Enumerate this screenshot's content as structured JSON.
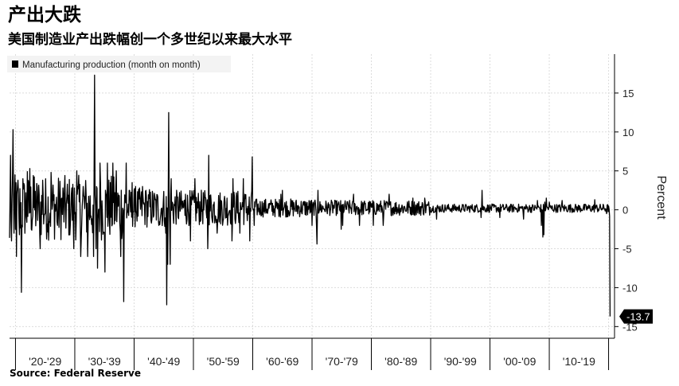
{
  "title": "产出大跌",
  "subtitle": "美国制造业产出跌幅创一个多世纪以来最大水平",
  "source": "Source:  Federal Reserve",
  "chart_data": {
    "type": "line",
    "title": "产出大跌",
    "subtitle": "美国制造业产出跌幅创一个多世纪以来最大水平",
    "ylabel": "Percent",
    "xlabel": "",
    "ylim": [
      -16.5,
      20
    ],
    "yticks": [
      -15,
      -10,
      -5,
      0,
      5,
      10,
      15
    ],
    "x_tick_labels": [
      "'20-'29",
      "'30-'39",
      "'40-'49",
      "'50-'59",
      "'60-'69",
      "'70-'79",
      "'80-'89",
      "'90-'99",
      "'00-'09",
      "'10-'19"
    ],
    "xlim": [
      "1919-01",
      "2020-12"
    ],
    "legend": "top-left",
    "grid": true,
    "series": [
      {
        "name": "Manufacturing production (month on month)",
        "color": "#000000",
        "x_start": "1919-01",
        "frequency": "monthly",
        "keypoints": [
          [
            "1919-01",
            -3.6
          ],
          [
            "1919-03",
            7.0
          ],
          [
            "1919-05",
            -4.0
          ],
          [
            "1919-08",
            10.3
          ],
          [
            "1919-10",
            -3.0
          ],
          [
            "1919-12",
            4.5
          ],
          [
            "1920-03",
            -6.0
          ],
          [
            "1920-06",
            3.8
          ],
          [
            "1920-09",
            -3.2
          ],
          [
            "1921-01",
            -10.6
          ],
          [
            "1921-04",
            4.0
          ],
          [
            "1922-01",
            4.9
          ],
          [
            "1922-06",
            5.3
          ],
          [
            "1923-01",
            4.4
          ],
          [
            "1924-03",
            -5.0
          ],
          [
            "1924-08",
            3.8
          ],
          [
            "1926-01",
            4.8
          ],
          [
            "1927-02",
            -2.0
          ],
          [
            "1929-06",
            2.0
          ],
          [
            "1929-11",
            -5.0
          ],
          [
            "1930-05",
            5.0
          ],
          [
            "1931-01",
            -6.0
          ],
          [
            "1931-06",
            3.0
          ],
          [
            "1932-03",
            -6.0
          ],
          [
            "1933-03",
            -6.0
          ],
          [
            "1933-05",
            17.3
          ],
          [
            "1933-08",
            -5.0
          ],
          [
            "1933-11",
            -7.5
          ],
          [
            "1934-04",
            6.0
          ],
          [
            "1935-02",
            -8.0
          ],
          [
            "1935-07",
            6.0
          ],
          [
            "1936-06",
            6.0
          ],
          [
            "1937-01",
            5.0
          ],
          [
            "1937-10",
            -6.0
          ],
          [
            "1938-04",
            -11.8
          ],
          [
            "1938-09",
            6.0
          ],
          [
            "1939-09",
            3.5
          ],
          [
            "1940-04",
            3.0
          ],
          [
            "1941-06",
            3.0
          ],
          [
            "1942-01",
            2.5
          ],
          [
            "1944-03",
            -2.0
          ],
          [
            "1945-05",
            -3.0
          ],
          [
            "1945-07",
            -12.2
          ],
          [
            "1945-09",
            -7.0
          ],
          [
            "1945-11",
            12.5
          ],
          [
            "1946-02",
            -7.0
          ],
          [
            "1946-04",
            4.0
          ],
          [
            "1948-09",
            2.0
          ],
          [
            "1949-07",
            -4.0
          ],
          [
            "1950-04",
            4.0
          ],
          [
            "1952-06",
            -5.0
          ],
          [
            "1952-08",
            7.0
          ],
          [
            "1954-01",
            -3.0
          ],
          [
            "1956-07",
            -4.0
          ],
          [
            "1956-09",
            4.0
          ],
          [
            "1957-11",
            -3.0
          ],
          [
            "1958-06",
            4.0
          ],
          [
            "1959-07",
            -4.0
          ],
          [
            "1959-12",
            6.8
          ],
          [
            "1960-04",
            -2.0
          ],
          [
            "1964-10",
            2.0
          ],
          [
            "1965-01",
            2.5
          ],
          [
            "1970-01",
            -2.0
          ],
          [
            "1970-10",
            -2.0
          ],
          [
            "1970-11",
            -4.4
          ],
          [
            "1971-01",
            2.5
          ],
          [
            "1974-12",
            -2.5
          ],
          [
            "1975-03",
            -2.0
          ],
          [
            "1977-01",
            2.0
          ],
          [
            "1978-01",
            -2.0
          ],
          [
            "1980-05",
            -2.0
          ],
          [
            "1982-01",
            -2.0
          ],
          [
            "1983-01",
            2.0
          ],
          [
            "1987-01",
            1.5
          ],
          [
            "1989-01",
            1.5
          ],
          [
            "1991-01",
            -1.2
          ],
          [
            "1998-07",
            -1.0
          ],
          [
            "1998-09",
            2.5
          ],
          [
            "2001-09",
            -1.0
          ],
          [
            "2005-09",
            -1.2
          ],
          [
            "2008-01",
            1.2
          ],
          [
            "2008-09",
            -2.0
          ],
          [
            "2008-12",
            -3.5
          ],
          [
            "2009-02",
            -3.2
          ],
          [
            "2009-04",
            1.0
          ],
          [
            "2009-07",
            1.5
          ],
          [
            "2010-01",
            1.0
          ],
          [
            "2012-03",
            1.2
          ],
          [
            "2017-09",
            1.3
          ],
          [
            "2019-09",
            -0.5
          ],
          [
            "2020-01",
            0.5
          ],
          [
            "2020-02",
            0.1
          ],
          [
            "2020-03",
            -0.8
          ],
          [
            "2020-04",
            -13.7
          ]
        ],
        "last_value": -13.7,
        "last_label": "-13.7"
      }
    ]
  }
}
